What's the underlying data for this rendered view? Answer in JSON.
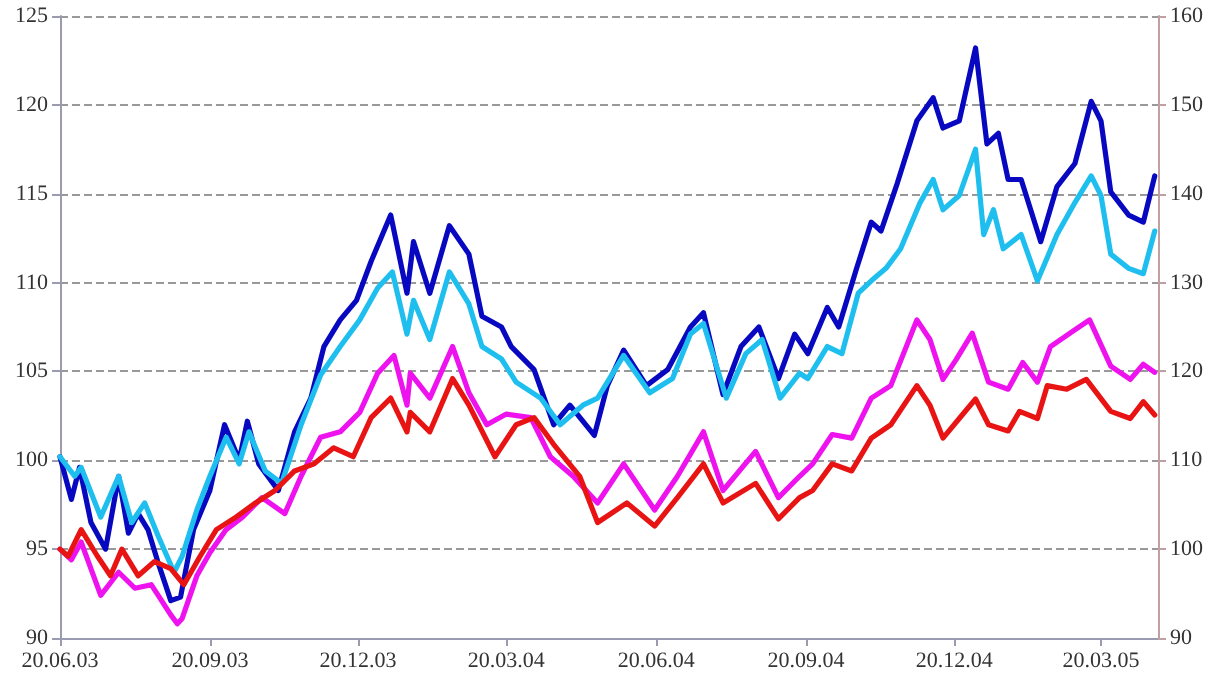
{
  "chart_data": {
    "type": "line",
    "xlim": [
      "2003-06-20",
      "2005-04-24"
    ],
    "xticks": [
      {
        "value": "2003-06-20",
        "label": "20.06.03"
      },
      {
        "value": "2003-09-20",
        "label": "20.09.03"
      },
      {
        "value": "2003-12-20",
        "label": "20.12.03"
      },
      {
        "value": "2004-03-20",
        "label": "20.03.04"
      },
      {
        "value": "2004-06-20",
        "label": "20.06.04"
      },
      {
        "value": "2004-09-20",
        "label": "20.09.04"
      },
      {
        "value": "2004-12-20",
        "label": "20.12.04"
      },
      {
        "value": "2005-03-20",
        "label": "20.03.05"
      }
    ],
    "ylim": [
      90,
      125
    ],
    "yticks": [
      90,
      95,
      100,
      105,
      110,
      115,
      120,
      125
    ],
    "y2lim": [
      90,
      160
    ],
    "y2ticks": [
      90,
      100,
      110,
      120,
      130,
      140,
      150,
      160
    ],
    "grid": "y",
    "marker": "none",
    "line_style": "solid",
    "series": [
      {
        "color": "#0808c0",
        "x": [
          "2003-06-20",
          "2003-06-27",
          "2003-07-02",
          "2003-07-09",
          "2003-07-18",
          "2003-07-26",
          "2003-08-01",
          "2003-08-07",
          "2003-08-13",
          "2003-08-19",
          "2003-08-27",
          "2003-09-02",
          "2003-09-10",
          "2003-09-20",
          "2003-09-29",
          "2003-10-08",
          "2003-10-13",
          "2003-10-20",
          "2003-11-01",
          "2003-11-11",
          "2003-11-21",
          "2003-11-29",
          "2003-12-09",
          "2003-12-19",
          "2003-12-28",
          "2004-01-09",
          "2004-01-19",
          "2004-01-23",
          "2004-02-02",
          "2004-02-14",
          "2004-02-26",
          "2004-03-05",
          "2004-03-17",
          "2004-03-23",
          "2004-04-06",
          "2004-04-18",
          "2004-04-28",
          "2004-05-13",
          "2004-05-21",
          "2004-05-31",
          "2004-06-14",
          "2004-06-27",
          "2004-07-11",
          "2004-07-19",
          "2004-07-31",
          "2004-08-11",
          "2004-08-22",
          "2004-09-03",
          "2004-09-13",
          "2004-09-21",
          "2004-10-03",
          "2004-10-10",
          "2004-10-21",
          "2004-10-30",
          "2004-11-05",
          "2004-11-15",
          "2004-11-27",
          "2004-12-07",
          "2004-12-13",
          "2004-12-23",
          "2005-01-02",
          "2005-01-09",
          "2005-01-16",
          "2005-01-22",
          "2005-01-30",
          "2005-02-11",
          "2005-02-21",
          "2005-03-04",
          "2005-03-14",
          "2005-03-20",
          "2005-03-26",
          "2005-04-06",
          "2005-04-15",
          "2005-04-22"
        ],
        "values": [
          100.2,
          97.8,
          99.6,
          96.5,
          95.0,
          99.1,
          95.9,
          97.0,
          96.1,
          94.3,
          92.1,
          92.3,
          96.1,
          98.3,
          102.0,
          100.0,
          102.2,
          99.8,
          98.3,
          101.6,
          103.5,
          106.4,
          107.9,
          109.0,
          111.2,
          113.8,
          109.4,
          112.3,
          109.4,
          113.2,
          111.6,
          108.1,
          107.5,
          106.4,
          105.1,
          102.0,
          103.1,
          101.4,
          104.2,
          106.2,
          104.2,
          105.1,
          107.5,
          108.3,
          103.7,
          106.4,
          107.5,
          104.6,
          107.1,
          106.0,
          108.6,
          107.5,
          110.8,
          113.4,
          112.9,
          115.6,
          119.1,
          120.4,
          118.7,
          119.1,
          123.2,
          117.8,
          118.4,
          115.8,
          115.8,
          112.3,
          115.4,
          116.7,
          120.2,
          119.1,
          115.1,
          113.8,
          113.4,
          116.0
        ]
      },
      {
        "color": "#1ebfee",
        "x": [
          "2003-06-20",
          "2003-06-29",
          "2003-07-03",
          "2003-07-15",
          "2003-07-26",
          "2003-08-03",
          "2003-08-11",
          "2003-08-19",
          "2003-08-29",
          "2003-09-03",
          "2003-09-12",
          "2003-09-20",
          "2003-09-30",
          "2003-10-08",
          "2003-10-14",
          "2003-10-24",
          "2003-11-03",
          "2003-11-15",
          "2003-11-27",
          "2003-12-09",
          "2003-12-21",
          "2004-01-01",
          "2004-01-10",
          "2004-01-19",
          "2004-01-23",
          "2004-02-02",
          "2004-02-14",
          "2004-02-26",
          "2004-03-05",
          "2004-03-17",
          "2004-03-26",
          "2004-04-10",
          "2004-04-22",
          "2004-05-06",
          "2004-05-15",
          "2004-05-31",
          "2004-06-16",
          "2004-06-30",
          "2004-07-11",
          "2004-07-19",
          "2004-08-02",
          "2004-08-14",
          "2004-08-24",
          "2004-09-04",
          "2004-09-16",
          "2004-09-21",
          "2004-10-03",
          "2004-10-12",
          "2004-10-22",
          "2004-10-30",
          "2004-11-08",
          "2004-11-17",
          "2004-11-29",
          "2004-12-07",
          "2004-12-13",
          "2004-12-23",
          "2005-01-02",
          "2005-01-07",
          "2005-01-13",
          "2005-01-19",
          "2005-01-30",
          "2005-02-09",
          "2005-02-21",
          "2005-03-04",
          "2005-03-14",
          "2005-03-20",
          "2005-03-26",
          "2005-04-06",
          "2005-04-15",
          "2005-04-22"
        ],
        "values": [
          100.2,
          99.1,
          99.6,
          96.8,
          99.1,
          96.5,
          97.6,
          95.8,
          93.7,
          94.6,
          97.2,
          99.1,
          101.3,
          99.8,
          101.6,
          99.4,
          98.7,
          102.0,
          104.8,
          106.4,
          107.9,
          109.7,
          110.6,
          107.1,
          109.0,
          106.8,
          110.6,
          108.8,
          106.4,
          105.7,
          104.4,
          103.5,
          102.0,
          103.1,
          103.5,
          105.9,
          103.8,
          104.6,
          107.1,
          107.7,
          103.5,
          106.0,
          106.8,
          103.5,
          104.9,
          104.6,
          106.4,
          106.0,
          109.4,
          110.1,
          110.8,
          111.9,
          114.5,
          115.8,
          114.1,
          114.9,
          117.5,
          112.7,
          114.1,
          111.9,
          112.7,
          110.1,
          112.7,
          114.5,
          116.0,
          114.9,
          111.6,
          110.8,
          110.5,
          112.9
        ]
      },
      {
        "color": "#ee12ee",
        "axis": "y2",
        "x": [
          "2003-06-20",
          "2003-06-27",
          "2003-07-03",
          "2003-07-15",
          "2003-07-26",
          "2003-08-05",
          "2003-08-15",
          "2003-08-27",
          "2003-08-31",
          "2003-09-03",
          "2003-09-12",
          "2003-09-20",
          "2003-09-30",
          "2003-10-10",
          "2003-10-22",
          "2003-11-05",
          "2003-11-15",
          "2003-11-27",
          "2003-12-09",
          "2003-12-21",
          "2004-01-01",
          "2004-01-11",
          "2004-01-19",
          "2004-01-21",
          "2004-02-02",
          "2004-02-16",
          "2004-02-26",
          "2004-03-08",
          "2004-03-20",
          "2004-04-04",
          "2004-04-16",
          "2004-04-30",
          "2004-05-15",
          "2004-05-31",
          "2004-06-19",
          "2004-07-03",
          "2004-07-19",
          "2004-07-31",
          "2004-08-20",
          "2004-09-03",
          "2004-09-16",
          "2004-09-24",
          "2004-10-06",
          "2004-10-18",
          "2004-10-30",
          "2004-11-11",
          "2004-11-27",
          "2004-12-05",
          "2004-12-13",
          "2004-12-21",
          "2004-12-31",
          "2005-01-10",
          "2005-01-22",
          "2005-01-31",
          "2005-02-09",
          "2005-02-17",
          "2005-03-01",
          "2005-03-13",
          "2005-03-26",
          "2005-04-07",
          "2005-04-15",
          "2005-04-22"
        ],
        "values": [
          100.0,
          98.8,
          100.8,
          94.8,
          97.4,
          95.6,
          96.0,
          92.6,
          91.6,
          92.2,
          97.0,
          99.6,
          102.2,
          103.6,
          105.8,
          104.0,
          108.2,
          112.6,
          113.2,
          115.4,
          119.8,
          121.8,
          116.2,
          119.8,
          117.0,
          122.8,
          117.6,
          114.0,
          115.2,
          114.8,
          110.4,
          108.2,
          105.2,
          109.6,
          104.4,
          108.2,
          113.2,
          106.6,
          111.0,
          105.8,
          108.2,
          109.6,
          112.9,
          112.5,
          117.0,
          118.4,
          125.8,
          123.6,
          119.1,
          121.3,
          124.3,
          118.8,
          118.0,
          121.0,
          118.8,
          122.8,
          124.3,
          125.8,
          120.6,
          119.1,
          120.8,
          119.9
        ]
      },
      {
        "color": "#e81414",
        "axis": "y2",
        "x": [
          "2003-06-20",
          "2003-06-25",
          "2003-07-03",
          "2003-07-13",
          "2003-07-21",
          "2003-07-28",
          "2003-08-07",
          "2003-08-17",
          "2003-08-27",
          "2003-09-04",
          "2003-09-14",
          "2003-09-24",
          "2003-10-06",
          "2003-10-18",
          "2003-10-30",
          "2003-11-11",
          "2003-11-23",
          "2003-12-05",
          "2003-12-17",
          "2003-12-28",
          "2004-01-09",
          "2004-01-19",
          "2004-01-21",
          "2004-02-02",
          "2004-02-16",
          "2004-02-26",
          "2004-03-13",
          "2004-03-26",
          "2004-04-06",
          "2004-04-18",
          "2004-05-04",
          "2004-05-15",
          "2004-06-02",
          "2004-06-19",
          "2004-07-03",
          "2004-07-19",
          "2004-07-31",
          "2004-08-20",
          "2004-09-03",
          "2004-09-16",
          "2004-09-24",
          "2004-10-06",
          "2004-10-18",
          "2004-10-30",
          "2004-11-11",
          "2004-11-27",
          "2004-12-05",
          "2004-12-13",
          "2004-12-23",
          "2005-01-02",
          "2005-01-10",
          "2005-01-22",
          "2005-01-29",
          "2005-02-09",
          "2005-02-15",
          "2005-02-27",
          "2005-03-11",
          "2005-03-26",
          "2005-04-07",
          "2005-04-15",
          "2005-04-22"
        ],
        "values": [
          100.0,
          99.2,
          102.2,
          99.2,
          97.0,
          100.0,
          97.0,
          98.6,
          97.8,
          96.0,
          99.2,
          102.2,
          103.6,
          105.2,
          106.6,
          108.8,
          109.6,
          111.4,
          110.4,
          114.8,
          117.0,
          113.2,
          115.4,
          113.2,
          119.2,
          116.2,
          110.4,
          114.0,
          114.8,
          111.8,
          108.2,
          103.0,
          105.2,
          102.6,
          105.8,
          109.6,
          105.2,
          107.4,
          103.4,
          105.8,
          106.6,
          109.6,
          108.8,
          112.5,
          114.0,
          118.4,
          116.2,
          112.5,
          114.7,
          116.9,
          114.0,
          113.3,
          115.5,
          114.7,
          118.4,
          118.0,
          119.1,
          115.5,
          114.7,
          116.6,
          115.1
        ]
      }
    ]
  }
}
